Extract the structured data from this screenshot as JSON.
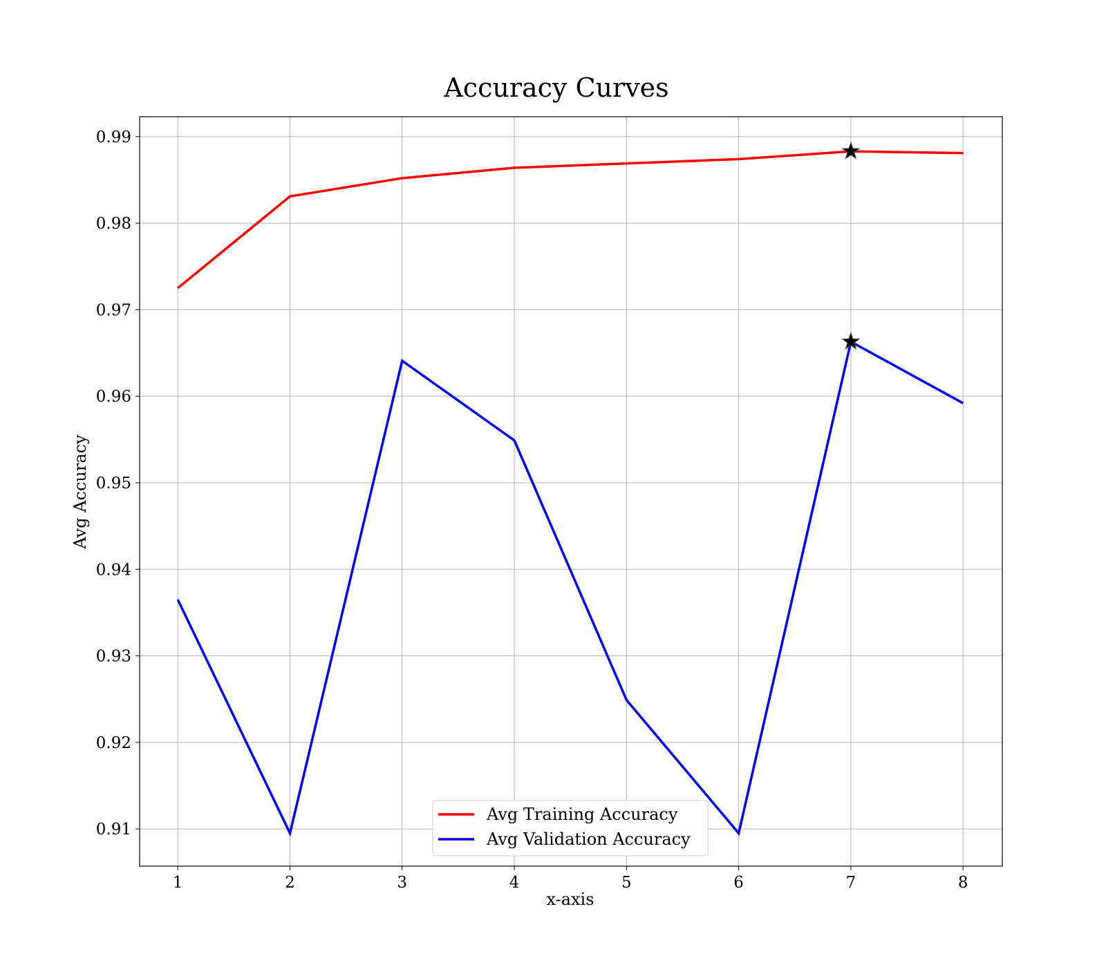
{
  "chart_data": {
    "type": "line",
    "title": "Accuracy Curves",
    "xlabel": "x-axis",
    "ylabel": "Avg Accuracy",
    "x": [
      1,
      2,
      3,
      4,
      5,
      6,
      7,
      8
    ],
    "xlim": [
      0.66,
      8.35
    ],
    "ylim": [
      0.9057,
      0.9923
    ],
    "xticks": [
      1,
      2,
      3,
      4,
      5,
      6,
      7,
      8
    ],
    "yticks": [
      0.91,
      0.92,
      0.93,
      0.94,
      0.95,
      0.96,
      0.97,
      0.98,
      0.99
    ],
    "ytick_labels": [
      "0.91",
      "0.92",
      "0.93",
      "0.94",
      "0.95",
      "0.96",
      "0.97",
      "0.98",
      "0.99"
    ],
    "grid": true,
    "legend_position": "lower-center",
    "series": [
      {
        "name": "Avg Training Accuracy",
        "color": "#ff0000",
        "values": [
          0.9725,
          0.9831,
          0.9852,
          0.9864,
          0.9869,
          0.9874,
          0.9883,
          0.9881
        ],
        "marker": {
          "x": 7,
          "y": 0.9883,
          "shape": "star"
        }
      },
      {
        "name": "Avg Validation Accuracy",
        "color": "#0000ff",
        "values": [
          0.9365,
          0.9095,
          0.9641,
          0.9549,
          0.9249,
          0.9095,
          0.9663,
          0.9592
        ],
        "marker": {
          "x": 7,
          "y": 0.9663,
          "shape": "star"
        }
      }
    ]
  }
}
